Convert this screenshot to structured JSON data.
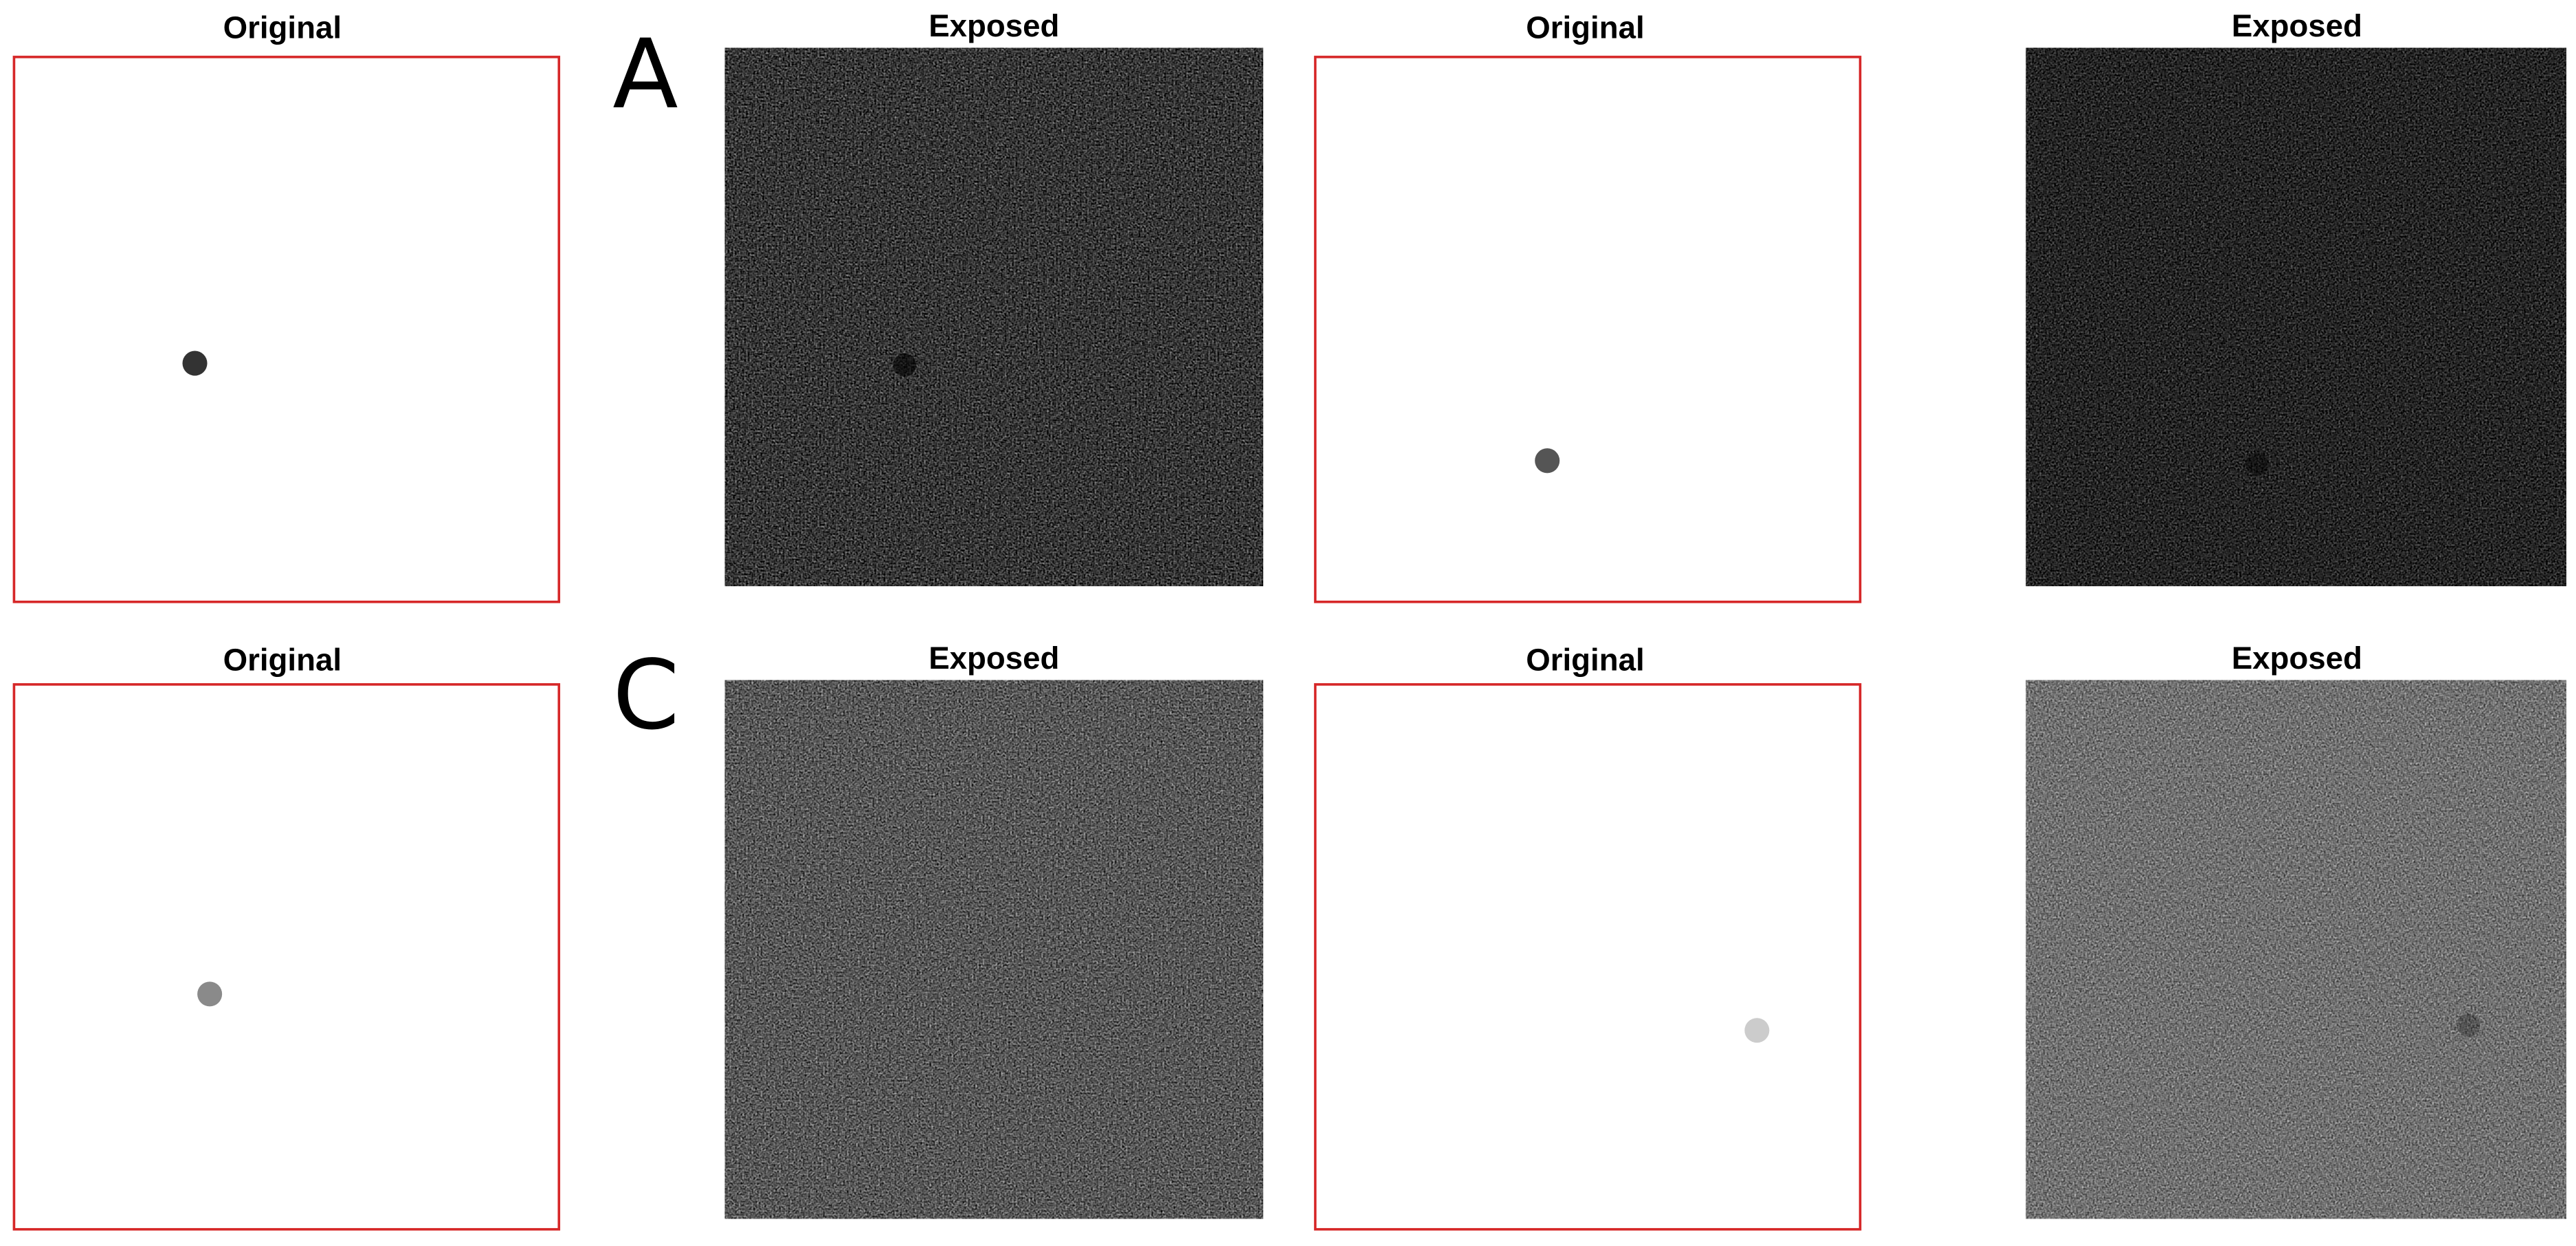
{
  "labels": [
    "A",
    "C"
  ],
  "rows": [
    {
      "panels": [
        {
          "title": "Original"
        },
        {
          "title": "Exposed"
        },
        {
          "title": "Original"
        },
        {
          "title": "Exposed"
        }
      ]
    },
    {
      "panels": [
        {
          "title": "Original"
        },
        {
          "title": "Exposed"
        },
        {
          "title": "Original"
        },
        {
          "title": "Exposed"
        }
      ]
    }
  ]
}
